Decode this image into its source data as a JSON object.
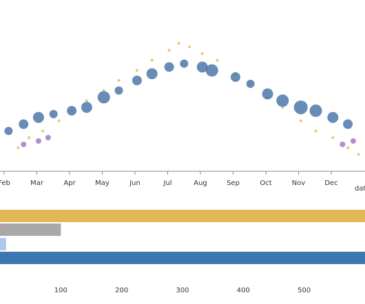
{
  "chart_data": [
    {
      "type": "scatter",
      "title": "",
      "xlabel": "date",
      "ylabel": "",
      "x_ticks": [
        "Feb",
        "Mar",
        "Apr",
        "May",
        "Jun",
        "Jul",
        "Aug",
        "Sep",
        "Oct",
        "Nov",
        "Dec"
      ],
      "x_domain": [
        "2015-01-24",
        "2015-12-31"
      ],
      "colors": {
        "blue": "#4c78a8",
        "yellow": "#e0b858",
        "purple": "#a070c8",
        "gray": "#b0b0b0"
      },
      "series": [
        {
          "color": "yellow",
          "note": "dense small points",
          "points": [
            [
              "2015-02-10",
              -3
            ],
            [
              "2015-02-20",
              0
            ],
            [
              "2015-03-05",
              2
            ],
            [
              "2015-03-20",
              5
            ],
            [
              "2015-04-01",
              8
            ],
            [
              "2015-04-15",
              11
            ],
            [
              "2015-05-01",
              14
            ],
            [
              "2015-05-15",
              17
            ],
            [
              "2015-06-01",
              20
            ],
            [
              "2015-06-15",
              23
            ],
            [
              "2015-07-01",
              26
            ],
            [
              "2015-07-10",
              28
            ],
            [
              "2015-07-20",
              27
            ],
            [
              "2015-08-01",
              25
            ],
            [
              "2015-08-15",
              23
            ],
            [
              "2015-09-01",
              19
            ],
            [
              "2015-09-15",
              16
            ],
            [
              "2015-10-01",
              12
            ],
            [
              "2015-10-15",
              9
            ],
            [
              "2015-11-01",
              5
            ],
            [
              "2015-11-15",
              2
            ],
            [
              "2015-12-01",
              0
            ],
            [
              "2015-12-15",
              -3
            ],
            [
              "2015-12-25",
              -5
            ]
          ]
        },
        {
          "color": "blue",
          "note": "larger bubbles",
          "points": [
            [
              "2015-02-01",
              2,
              6
            ],
            [
              "2015-02-15",
              4,
              7
            ],
            [
              "2015-03-01",
              6,
              8
            ],
            [
              "2015-03-15",
              7,
              6
            ],
            [
              "2015-04-01",
              8,
              7
            ],
            [
              "2015-04-15",
              9,
              8
            ],
            [
              "2015-05-01",
              12,
              9
            ],
            [
              "2015-05-15",
              14,
              6
            ],
            [
              "2015-06-01",
              17,
              7
            ],
            [
              "2015-06-15",
              19,
              8
            ],
            [
              "2015-07-01",
              21,
              7
            ],
            [
              "2015-07-15",
              22,
              6
            ],
            [
              "2015-08-01",
              21,
              8
            ],
            [
              "2015-08-10",
              20,
              9
            ],
            [
              "2015-09-01",
              18,
              7
            ],
            [
              "2015-09-15",
              16,
              6
            ],
            [
              "2015-10-01",
              13,
              8
            ],
            [
              "2015-10-15",
              11,
              9
            ],
            [
              "2015-11-01",
              9,
              10
            ],
            [
              "2015-11-15",
              8,
              9
            ],
            [
              "2015-12-01",
              6,
              8
            ],
            [
              "2015-12-15",
              4,
              7
            ]
          ]
        },
        {
          "color": "purple",
          "points": [
            [
              "2015-02-15",
              -2
            ],
            [
              "2015-03-01",
              -1
            ],
            [
              "2015-03-10",
              0
            ],
            [
              "2015-12-10",
              -2
            ],
            [
              "2015-12-20",
              -1
            ]
          ]
        }
      ]
    },
    {
      "type": "bar",
      "title": "",
      "xlabel": "",
      "ylabel": "",
      "x_ticks": [
        100,
        200,
        300,
        400,
        500
      ],
      "x_min": 0,
      "xlim": [
        0,
        600
      ],
      "bars": [
        {
          "value": 625,
          "color": "#e0b858"
        },
        {
          "value": 100,
          "color": "#a8a8a8"
        },
        {
          "value": 10,
          "color": "#aec8ec"
        },
        {
          "value": 625,
          "color": "#3d77b0"
        }
      ]
    }
  ]
}
